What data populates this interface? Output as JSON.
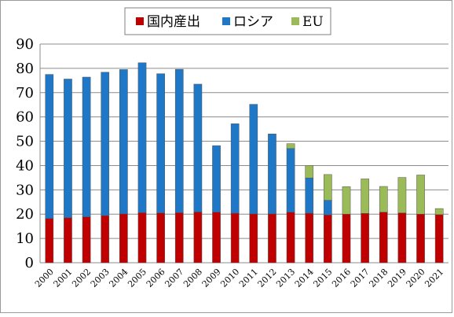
{
  "chart_data": {
    "type": "bar",
    "stacked": true,
    "categories": [
      "2000",
      "2001",
      "2002",
      "2003",
      "2004",
      "2005",
      "2006",
      "2007",
      "2008",
      "2009",
      "2010",
      "2011",
      "2012",
      "2013",
      "2014",
      "2015",
      "2016",
      "2017",
      "2018",
      "2019",
      "2020",
      "2021"
    ],
    "series": [
      {
        "name": "国内産出",
        "color": "#c00000",
        "values": [
          18.2,
          18.5,
          18.9,
          19.4,
          20.1,
          20.6,
          20.5,
          20.6,
          20.9,
          20.8,
          20.4,
          20.1,
          20.1,
          20.8,
          20.4,
          19.7,
          20.0,
          20.3,
          20.8,
          20.5,
          20.0,
          19.8
        ]
      },
      {
        "name": "ロシア",
        "color": "#1f77c8",
        "values": [
          59.3,
          57.1,
          57.5,
          59.0,
          59.4,
          61.7,
          57.3,
          59.0,
          52.6,
          27.4,
          36.8,
          45.1,
          32.9,
          26.2,
          14.5,
          6.0,
          0,
          0,
          0,
          0,
          0,
          0
        ]
      },
      {
        "name": "EU",
        "color": "#9bbb59",
        "values": [
          0,
          0,
          0,
          0,
          0,
          0,
          0,
          0,
          0,
          0,
          0,
          0,
          0,
          2.0,
          5.1,
          10.6,
          11.3,
          14.2,
          10.6,
          14.6,
          16.1,
          2.5
        ]
      }
    ],
    "ylim": [
      0,
      90
    ],
    "yticks": [
      0,
      10,
      20,
      30,
      40,
      50,
      60,
      70,
      80,
      90
    ],
    "grid": true,
    "legend_position": "top-center",
    "xlabel": "",
    "ylabel": "",
    "title": ""
  }
}
